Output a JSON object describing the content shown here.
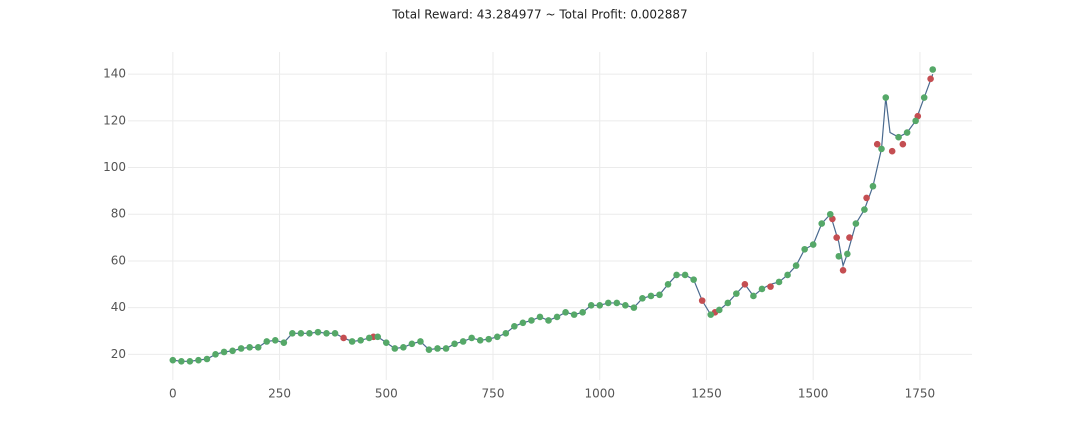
{
  "chart_data": {
    "type": "line",
    "title": "Total Reward: 43.284977 ~ Total Profit: 0.002887",
    "xlim": [
      -105,
      1872
    ],
    "ylim": [
      9,
      149.5
    ],
    "xticks": [
      0,
      250,
      500,
      750,
      1000,
      1250,
      1500,
      1750
    ],
    "yticks": [
      20,
      40,
      60,
      80,
      100,
      120,
      140
    ],
    "grid": true,
    "series": [
      {
        "color": "#4a6a8f",
        "marker": false,
        "x": [
          0,
          20,
          40,
          60,
          80,
          100,
          120,
          140,
          160,
          180,
          200,
          220,
          240,
          260,
          280,
          300,
          320,
          340,
          360,
          380,
          400,
          420,
          440,
          460,
          480,
          500,
          520,
          540,
          560,
          580,
          600,
          620,
          640,
          660,
          680,
          700,
          720,
          740,
          760,
          780,
          800,
          820,
          840,
          860,
          880,
          900,
          920,
          940,
          960,
          980,
          1000,
          1020,
          1040,
          1060,
          1080,
          1100,
          1120,
          1140,
          1160,
          1180,
          1200,
          1220,
          1240,
          1260,
          1280,
          1300,
          1320,
          1340,
          1360,
          1380,
          1400,
          1420,
          1440,
          1460,
          1480,
          1500,
          1520,
          1540,
          1560,
          1570,
          1580,
          1600,
          1620,
          1640,
          1660,
          1670,
          1680,
          1700,
          1720,
          1740,
          1760,
          1780
        ],
        "values": [
          17.5,
          17,
          17,
          17.5,
          18,
          20,
          21,
          21.5,
          22.5,
          23,
          23,
          25.5,
          26,
          25,
          29,
          29,
          29,
          29.5,
          29,
          29,
          27,
          25.5,
          26,
          27,
          27.5,
          25,
          22.5,
          23,
          24.5,
          25.5,
          22,
          22.5,
          22.5,
          24.5,
          25.5,
          27,
          26,
          26.5,
          27.5,
          29,
          32,
          33.5,
          34.5,
          36,
          34.5,
          36,
          38,
          37,
          38,
          41,
          41,
          42,
          42,
          41,
          40,
          44,
          45,
          45.5,
          50,
          54,
          54,
          52,
          43,
          37,
          39,
          42,
          46,
          50,
          45,
          48,
          50,
          51,
          54,
          58,
          65,
          67,
          76,
          80,
          68,
          58,
          63,
          76,
          82,
          92,
          108,
          130,
          115,
          113,
          115,
          120,
          130,
          140
        ]
      },
      {
        "color": "#c44e52",
        "marker": true,
        "x": [
          400,
          470,
          1240,
          1270,
          1340,
          1400,
          1545,
          1555,
          1570,
          1585,
          1625,
          1650,
          1685,
          1710,
          1745,
          1775
        ],
        "values": [
          27,
          27.5,
          43,
          38,
          50,
          49,
          78,
          70,
          56,
          70,
          87,
          110,
          107,
          110,
          122,
          138
        ]
      },
      {
        "color": "#55a868",
        "marker": true,
        "x": [
          0,
          20,
          40,
          60,
          80,
          100,
          120,
          140,
          160,
          180,
          200,
          220,
          240,
          260,
          280,
          300,
          320,
          340,
          360,
          380,
          420,
          440,
          460,
          480,
          500,
          520,
          540,
          560,
          580,
          600,
          620,
          640,
          660,
          680,
          700,
          720,
          740,
          760,
          780,
          800,
          820,
          840,
          860,
          880,
          900,
          920,
          940,
          960,
          980,
          1000,
          1020,
          1040,
          1060,
          1080,
          1100,
          1120,
          1140,
          1160,
          1180,
          1200,
          1220,
          1260,
          1280,
          1300,
          1320,
          1360,
          1380,
          1420,
          1440,
          1460,
          1480,
          1500,
          1520,
          1540,
          1560,
          1580,
          1600,
          1620,
          1640,
          1660,
          1670,
          1700,
          1720,
          1740,
          1760,
          1780
        ],
        "values": [
          17.5,
          17,
          17,
          17.5,
          18,
          20,
          21,
          21.5,
          22.5,
          23,
          23,
          25.5,
          26,
          25,
          29,
          29,
          29,
          29.5,
          29,
          29,
          25.5,
          26,
          27,
          27.5,
          25,
          22.5,
          23,
          24.5,
          25.5,
          22,
          22.5,
          22.5,
          24.5,
          25.5,
          27,
          26,
          26.5,
          27.5,
          29,
          32,
          33.5,
          34.5,
          36,
          34.5,
          36,
          38,
          37,
          38,
          41,
          41,
          42,
          42,
          41,
          40,
          44,
          45,
          45.5,
          50,
          54,
          54,
          52,
          37,
          39,
          42,
          46,
          45,
          48,
          51,
          54,
          58,
          65,
          67,
          76,
          80,
          62,
          63,
          76,
          82,
          92,
          108,
          130,
          113,
          115,
          120,
          130,
          142
        ]
      }
    ]
  }
}
